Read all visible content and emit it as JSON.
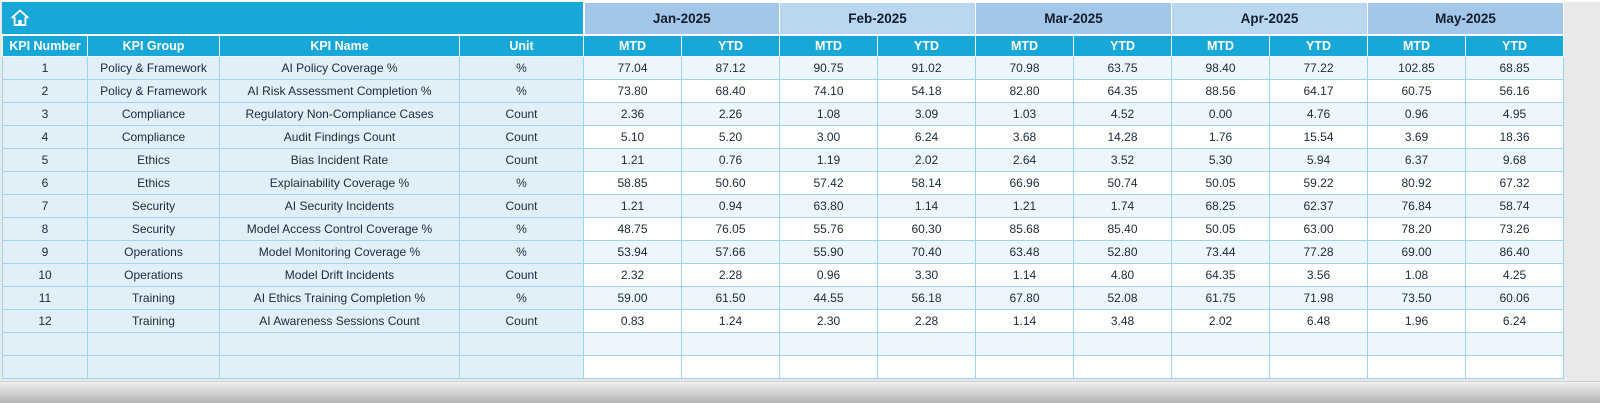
{
  "sheet": {
    "months": [
      "Jan-2025",
      "Feb-2025",
      "Mar-2025",
      "Apr-2025",
      "May-2025"
    ],
    "sub_headers": [
      "MTD",
      "YTD"
    ],
    "left_headers": [
      "KPI Number",
      "KPI Group",
      "KPI Name",
      "Unit"
    ],
    "rows": [
      {
        "number": "1",
        "group": "Policy & Framework",
        "name": "AI Policy Coverage %",
        "unit": "%",
        "values": [
          "77.04",
          "87.12",
          "90.75",
          "91.02",
          "70.98",
          "63.75",
          "98.40",
          "77.22",
          "102.85",
          "68.85"
        ]
      },
      {
        "number": "2",
        "group": "Policy & Framework",
        "name": "AI Risk Assessment Completion %",
        "unit": "%",
        "values": [
          "73.80",
          "68.40",
          "74.10",
          "54.18",
          "82.80",
          "64.35",
          "88.56",
          "64.17",
          "60.75",
          "56.16"
        ]
      },
      {
        "number": "3",
        "group": "Compliance",
        "name": "Regulatory Non-Compliance Cases",
        "unit": "Count",
        "values": [
          "2.36",
          "2.26",
          "1.08",
          "3.09",
          "1.03",
          "4.52",
          "0.00",
          "4.76",
          "0.96",
          "4.95"
        ]
      },
      {
        "number": "4",
        "group": "Compliance",
        "name": "Audit Findings Count",
        "unit": "Count",
        "values": [
          "5.10",
          "5.20",
          "3.00",
          "6.24",
          "3.68",
          "14.28",
          "1.76",
          "15.54",
          "3.69",
          "18.36"
        ]
      },
      {
        "number": "5",
        "group": "Ethics",
        "name": "Bias Incident Rate",
        "unit": "Count",
        "values": [
          "1.21",
          "0.76",
          "1.19",
          "2.02",
          "2.64",
          "3.52",
          "5.30",
          "5.94",
          "6.37",
          "9.68"
        ]
      },
      {
        "number": "6",
        "group": "Ethics",
        "name": "Explainability Coverage %",
        "unit": "%",
        "values": [
          "58.85",
          "50.60",
          "57.42",
          "58.14",
          "66.96",
          "50.74",
          "50.05",
          "59.22",
          "80.92",
          "67.32"
        ]
      },
      {
        "number": "7",
        "group": "Security",
        "name": "AI Security Incidents",
        "unit": "Count",
        "values": [
          "1.21",
          "0.94",
          "63.80",
          "1.14",
          "1.21",
          "1.74",
          "68.25",
          "62.37",
          "76.84",
          "58.74"
        ]
      },
      {
        "number": "8",
        "group": "Security",
        "name": "Model Access Control Coverage %",
        "unit": "%",
        "values": [
          "48.75",
          "76.05",
          "55.76",
          "60.30",
          "85.68",
          "85.40",
          "50.05",
          "63.00",
          "78.20",
          "73.26"
        ]
      },
      {
        "number": "9",
        "group": "Operations",
        "name": "Model Monitoring Coverage %",
        "unit": "%",
        "values": [
          "53.94",
          "57.66",
          "55.90",
          "70.40",
          "63.48",
          "52.80",
          "73.44",
          "77.28",
          "69.00",
          "86.40"
        ]
      },
      {
        "number": "10",
        "group": "Operations",
        "name": "Model Drift Incidents",
        "unit": "Count",
        "values": [
          "2.32",
          "2.28",
          "0.96",
          "3.30",
          "1.14",
          "4.80",
          "64.35",
          "3.56",
          "1.08",
          "4.25"
        ]
      },
      {
        "number": "11",
        "group": "Training",
        "name": "AI Ethics Training Completion %",
        "unit": "%",
        "values": [
          "59.00",
          "61.50",
          "44.55",
          "56.18",
          "67.80",
          "52.08",
          "61.75",
          "71.98",
          "73.50",
          "60.06"
        ]
      },
      {
        "number": "12",
        "group": "Training",
        "name": "AI Awareness Sessions Count",
        "unit": "Count",
        "values": [
          "0.83",
          "1.24",
          "2.30",
          "2.28",
          "1.14",
          "3.48",
          "2.02",
          "6.48",
          "1.96",
          "6.24"
        ]
      }
    ],
    "empty_row_count": 2
  },
  "icons": {
    "corner": "home-icon"
  },
  "colors": {
    "teal": "#17a8d8",
    "month-a": "#a3c7e8",
    "month-b": "#b9d7f1",
    "left-band": "#e1eff8",
    "row-tint": "#edf6fc",
    "grid": "#9bd5ee",
    "text-dark": "#1b2a3a"
  }
}
